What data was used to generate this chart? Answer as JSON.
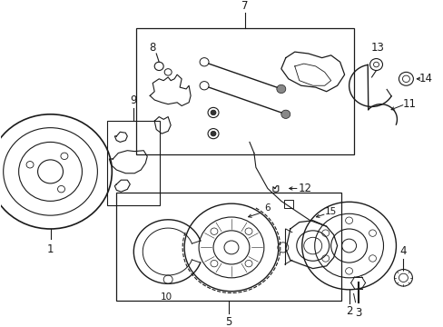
{
  "bg_color": "#ffffff",
  "fig_width": 4.89,
  "fig_height": 3.6,
  "dpi": 100,
  "lc": "#1a1a1a",
  "lw_main": 1.0,
  "fs": 8.5
}
